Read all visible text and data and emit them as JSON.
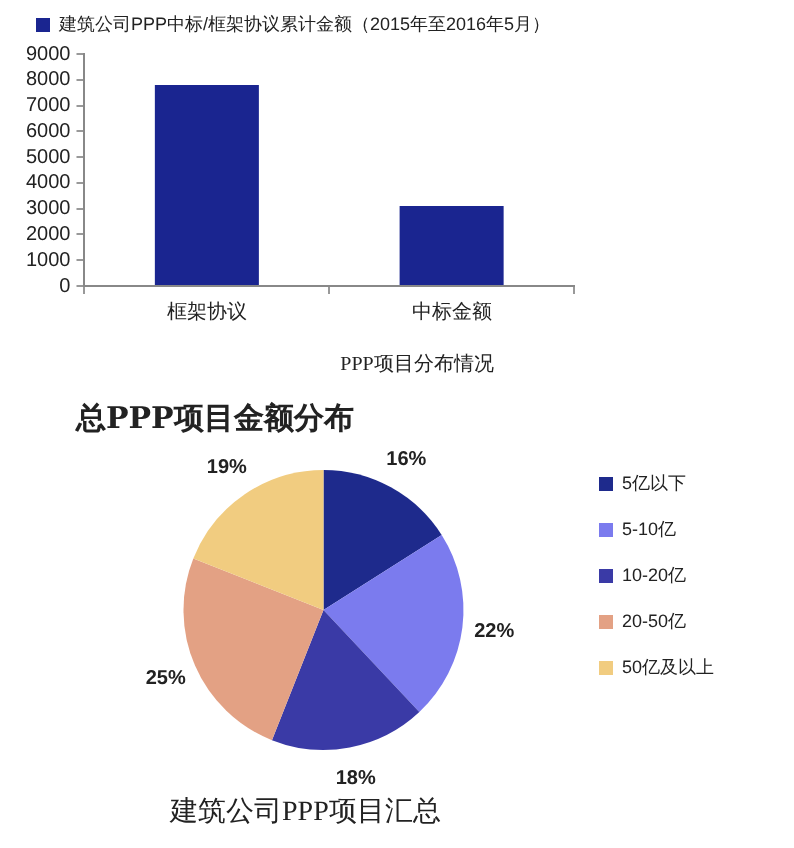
{
  "chart_data": [
    {
      "type": "bar",
      "categories": [
        "框架协议",
        "中标金额"
      ],
      "series": [
        {
          "name": "建筑公司PPP中标/框架协议累计金额（2015年至2016年5月）",
          "color": "#1a2590",
          "values": [
            7800,
            3100
          ]
        }
      ],
      "ylim": [
        0,
        9000
      ],
      "yticks": [
        0,
        1000,
        2000,
        3000,
        4000,
        5000,
        6000,
        7000,
        8000,
        9000
      ],
      "grid": false,
      "legend": "top left",
      "annotations": [
        "PPP项目分布情况"
      ]
    },
    {
      "type": "pie",
      "title": "总PPP项目金额分布",
      "categories": [
        "5亿以下",
        "5-10亿",
        "10-20亿",
        "20-50亿",
        "50亿及以上"
      ],
      "values": [
        16,
        22,
        18,
        25,
        19
      ],
      "colors": [
        "#1e2a8c",
        "#7b7bee",
        "#3a3aa6",
        "#e3a184",
        "#f1cc80"
      ],
      "value_labels": [
        "16%",
        "22%",
        "18%",
        "25%",
        "19%"
      ],
      "legend": "right",
      "annotations": [
        "建筑公司PPP项目汇总"
      ]
    }
  ]
}
